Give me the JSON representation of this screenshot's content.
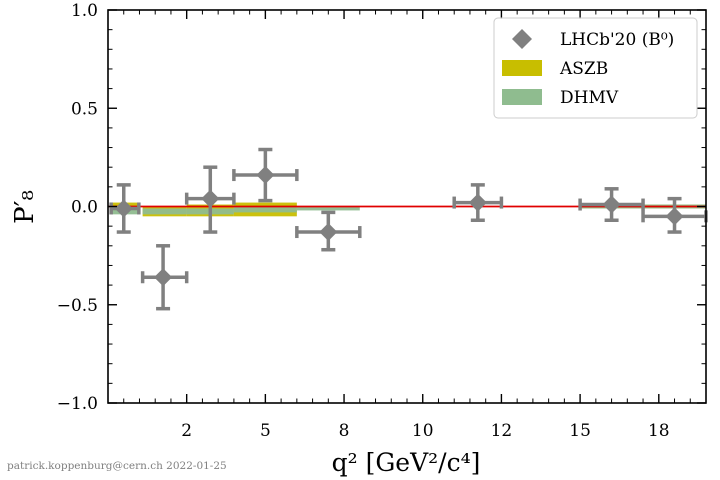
{
  "chart_data": {
    "type": "scatter",
    "xlabel": "q² [GeV²/c⁴]",
    "ylabel": "P′₈",
    "xlim": [
      0.0,
      19.0
    ],
    "ylim": [
      -1.0,
      1.0
    ],
    "x_tick_values": [
      2.5,
      5.0,
      7.5,
      10.0,
      12.5,
      15.0,
      17.5
    ],
    "x_tick_labels": [
      "2",
      "5",
      "8",
      "10",
      "12",
      "15",
      "18"
    ],
    "y_tick_values": [
      -1.0,
      -0.5,
      0.0,
      0.5,
      1.0
    ],
    "y_tick_labels": [
      "−1.0",
      "−0.5",
      "0.0",
      "0.5",
      "1.0"
    ],
    "minor_ticks": true,
    "reference_line": {
      "y": 0.0,
      "color": "#e00000"
    },
    "legend_position": "top-right",
    "legend": [
      {
        "label": "LHCb'20 (B⁰)",
        "marker": "diamond",
        "color": "#808080"
      },
      {
        "label": "ASZB",
        "marker": "band",
        "color": "#c8be00"
      },
      {
        "label": "DHMV",
        "marker": "band",
        "color": "#8fbc8f"
      }
    ],
    "series": [
      {
        "name": "LHCb'20 (B⁰)",
        "kind": "points",
        "color": "#808080",
        "points": [
          {
            "x": 0.5,
            "xlo": 0.1,
            "xhi": 0.98,
            "y": -0.01,
            "ylo": -0.13,
            "yhi": 0.11
          },
          {
            "x": 1.75,
            "xlo": 1.1,
            "xhi": 2.5,
            "y": -0.36,
            "ylo": -0.52,
            "yhi": -0.2
          },
          {
            "x": 3.25,
            "xlo": 2.5,
            "xhi": 4.0,
            "y": 0.04,
            "ylo": -0.13,
            "yhi": 0.2
          },
          {
            "x": 5.0,
            "xlo": 4.0,
            "xhi": 6.0,
            "y": 0.16,
            "ylo": 0.03,
            "yhi": 0.29
          },
          {
            "x": 7.0,
            "xlo": 6.0,
            "xhi": 8.0,
            "y": -0.13,
            "ylo": -0.22,
            "yhi": -0.03
          },
          {
            "x": 11.75,
            "xlo": 11.0,
            "xhi": 12.5,
            "y": 0.02,
            "ylo": -0.07,
            "yhi": 0.11
          },
          {
            "x": 16.0,
            "xlo": 15.0,
            "xhi": 17.0,
            "y": 0.01,
            "ylo": -0.07,
            "yhi": 0.09
          },
          {
            "x": 18.0,
            "xlo": 17.0,
            "xhi": 19.0,
            "y": -0.05,
            "ylo": -0.13,
            "yhi": 0.04
          }
        ]
      },
      {
        "name": "ASZB",
        "kind": "band",
        "color": "#c8be00",
        "bins": [
          {
            "xlo": 0.1,
            "xhi": 0.98,
            "ylo": -0.02,
            "yhi": 0.02
          },
          {
            "xlo": 1.1,
            "xhi": 2.5,
            "ylo": -0.05,
            "yhi": 0.0
          },
          {
            "xlo": 2.5,
            "xhi": 4.0,
            "ylo": -0.05,
            "yhi": 0.01
          },
          {
            "xlo": 4.0,
            "xhi": 6.0,
            "ylo": -0.05,
            "yhi": 0.02
          },
          {
            "xlo": 15.0,
            "xhi": 19.0,
            "ylo": -0.01,
            "yhi": 0.01
          }
        ]
      },
      {
        "name": "DHMV",
        "kind": "band",
        "color": "#8fbc8f",
        "bins": [
          {
            "xlo": 0.1,
            "xhi": 0.98,
            "ylo": -0.04,
            "yhi": -0.01
          },
          {
            "xlo": 1.1,
            "xhi": 2.5,
            "ylo": -0.04,
            "yhi": -0.01
          },
          {
            "xlo": 2.5,
            "xhi": 4.0,
            "ylo": -0.04,
            "yhi": -0.01
          },
          {
            "xlo": 4.0,
            "xhi": 6.0,
            "ylo": -0.03,
            "yhi": 0.0
          },
          {
            "xlo": 6.0,
            "xhi": 8.0,
            "ylo": -0.02,
            "yhi": 0.0
          },
          {
            "xlo": 15.0,
            "xhi": 19.0,
            "ylo": -0.01,
            "yhi": 0.01
          }
        ]
      }
    ]
  },
  "credit": "patrick.koppenburg@cern.ch  2022-01-25"
}
